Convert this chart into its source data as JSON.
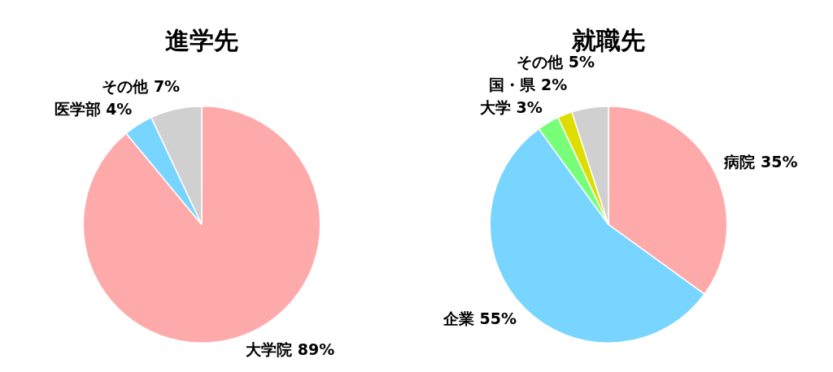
{
  "chart_data": [
    {
      "type": "pie",
      "title": "進学先",
      "categories": [
        "大学院",
        "医学部",
        "その他"
      ],
      "values": [
        89,
        4,
        7
      ],
      "value_labels": [
        "89%",
        "4%",
        "7%"
      ],
      "colors": [
        "#ffaaaa",
        "#77d5ff",
        "#d0d0d0"
      ],
      "legend": false
    },
    {
      "type": "pie",
      "title": "就職先",
      "categories": [
        "病院",
        "企業",
        "大学",
        "国・県",
        "その他"
      ],
      "values": [
        35,
        55,
        3,
        2,
        5
      ],
      "value_labels": [
        "35%",
        "55%",
        "3%",
        "2%",
        "5%"
      ],
      "colors": [
        "#ffaaaa",
        "#77d5ff",
        "#77ff77",
        "#dddd00",
        "#d0d0d0"
      ],
      "legend": false
    }
  ]
}
